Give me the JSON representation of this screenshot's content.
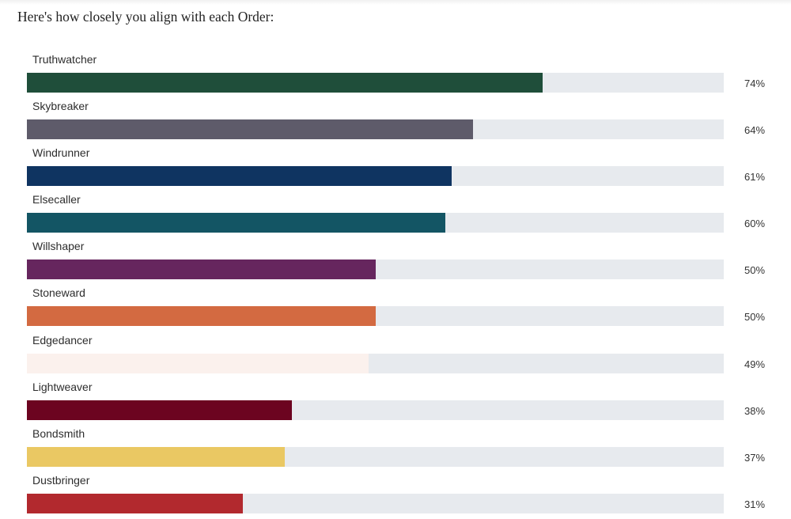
{
  "intro_text": "Here's how closely you align with each Order:",
  "chart_data": {
    "type": "bar",
    "orientation": "horizontal",
    "xlim": [
      0,
      100
    ],
    "grid": false,
    "categories": [
      "Truthwatcher",
      "Skybreaker",
      "Windrunner",
      "Elsecaller",
      "Willshaper",
      "Stoneward",
      "Edgedancer",
      "Lightweaver",
      "Bondsmith",
      "Dustbringer"
    ],
    "values": [
      74,
      64,
      61,
      60,
      50,
      50,
      49,
      38,
      37,
      31
    ],
    "value_labels": [
      "74%",
      "64%",
      "61%",
      "60%",
      "50%",
      "50%",
      "49%",
      "38%",
      "37%",
      "31%"
    ],
    "colors": [
      "#1f4e3a",
      "#5e5b6a",
      "#0f3461",
      "#135564",
      "#66265e",
      "#d36a41",
      "#fbf1ed",
      "#6c0420",
      "#eac863",
      "#b2292e"
    ],
    "track_color": "#e7eaee"
  }
}
